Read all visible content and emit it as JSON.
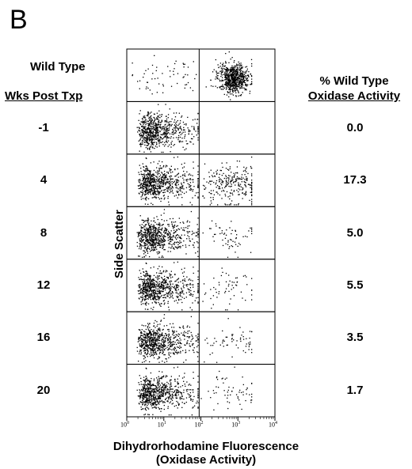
{
  "panel_letter": "B",
  "labels": {
    "wild_type": "Wild Type",
    "wks_post_txp": "Wks Post Txp",
    "pct_header_line1": "% Wild Type",
    "pct_header_line2": "Oxidase Activity",
    "y_axis": "Side Scatter",
    "x_axis_line1": "Dihydrorhodamine Fluorescence",
    "x_axis_line2": "(Oxidase Activity)"
  },
  "x_ticks": [
    {
      "base": "10",
      "exp": "0"
    },
    {
      "base": "10",
      "exp": "1"
    },
    {
      "base": "10",
      "exp": "2"
    },
    {
      "base": "10",
      "exp": "3"
    },
    {
      "base": "10",
      "exp": "4"
    }
  ],
  "chart_data": {
    "type": "scatter",
    "title": "",
    "xlabel": "Dihydrorhodamine Fluorescence (Oxidase Activity)",
    "ylabel": "Side Scatter",
    "xscale": "log",
    "xlim": [
      1,
      10000
    ],
    "gate_x": 90,
    "rows": [
      {
        "label": "Wild Type",
        "pct_wild_type_oxidase": "",
        "low_cluster": "sparse",
        "high_cluster": "dense"
      },
      {
        "label": "-1",
        "pct_wild_type_oxidase": "0.0",
        "low_cluster": "dense",
        "high_cluster": "none"
      },
      {
        "label": "4",
        "pct_wild_type_oxidase": "17.3",
        "low_cluster": "dense",
        "high_cluster": "medium"
      },
      {
        "label": "8",
        "pct_wild_type_oxidase": "5.0",
        "low_cluster": "dense",
        "high_cluster": "sparse"
      },
      {
        "label": "12",
        "pct_wild_type_oxidase": "5.5",
        "low_cluster": "dense",
        "high_cluster": "sparse"
      },
      {
        "label": "16",
        "pct_wild_type_oxidase": "3.5",
        "low_cluster": "dense",
        "high_cluster": "sparse"
      },
      {
        "label": "20",
        "pct_wild_type_oxidase": "1.7",
        "low_cluster": "dense",
        "high_cluster": "sparse"
      }
    ]
  }
}
